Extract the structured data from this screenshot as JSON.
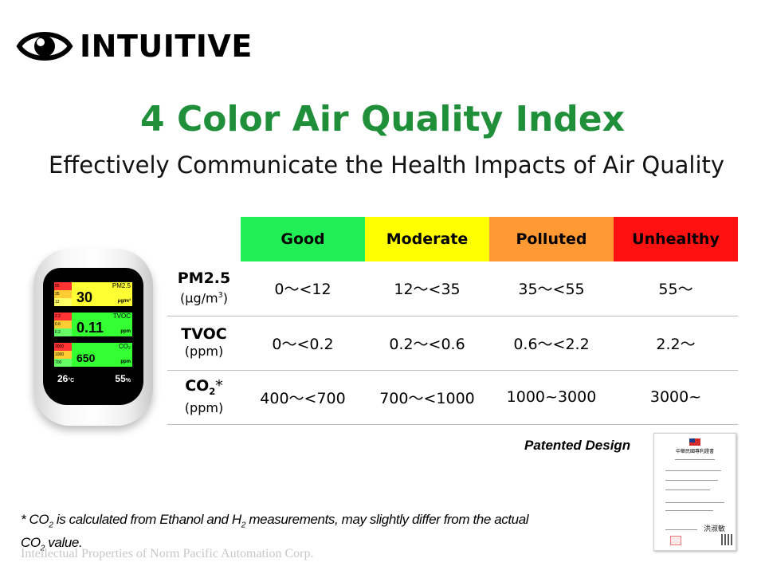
{
  "brand": {
    "name": "INTUITIVE",
    "icon": "eye-icon"
  },
  "title": "4 Color Air Quality Index",
  "subtitle": "Effectively Communicate the Health Impacts of Air Quality",
  "table": {
    "levels": [
      {
        "label": "Good",
        "color": "#22ee55",
        "text_color": "#000000"
      },
      {
        "label": "Moderate",
        "color": "#ffff00",
        "text_color": "#000000"
      },
      {
        "label": "Polluted",
        "color": "#ff9933",
        "text_color": "#000000"
      },
      {
        "label": "Unhealthy",
        "color": "#ff1111",
        "text_color": "#000000"
      }
    ],
    "rows": [
      {
        "name": "PM2.5",
        "unit_pre": "(µg/m",
        "unit_sup": "3",
        "unit_post": ")",
        "values": [
          "0～<12",
          "12～<35",
          "35～<55",
          "55～"
        ]
      },
      {
        "name": "TVOC",
        "unit": "(ppm)",
        "values": [
          "0～<0.2",
          "0.2～<0.6",
          "0.6～<2.2",
          "2.2～"
        ]
      },
      {
        "name_pre": "CO",
        "name_sub": "2",
        "name_post": "*",
        "unit": "(ppm)",
        "values": [
          "400～<700",
          "700～<1000",
          "1000~3000",
          "3000~"
        ]
      }
    ]
  },
  "device": {
    "pm25": {
      "label": "PM2.5",
      "value": "30",
      "unit": "μg/m³",
      "scale": [
        "55",
        "35",
        "12"
      ],
      "color": "#ffff33"
    },
    "tvoc": {
      "label": "TVOC",
      "value": "0.11",
      "unit": "ppm",
      "scale": [
        "2.2",
        "0.6",
        "0.2"
      ],
      "color": "#33ff33"
    },
    "co2": {
      "label": "CO₂",
      "value": "650",
      "unit": "ppm",
      "scale": [
        "3000",
        "1000",
        "700"
      ],
      "color": "#33ff33"
    },
    "temperature": "26",
    "temperature_unit": "°C",
    "humidity": "55",
    "humidity_unit": "%"
  },
  "patented": "Patented Design",
  "certificate": {
    "title": "中華民國專利證書",
    "signature": "洪淑敏"
  },
  "footnote": {
    "pre": "* CO",
    "sub1": "2",
    "mid": " is calculated from Ethanol and H",
    "sub2": "2",
    "post": " measurements, may slightly differ from the actual",
    "line2_pre": "CO",
    "line2_sub": "2",
    "line2_post": " value."
  },
  "copyright": "Intellectual  Properties of Norm Pacific Automation Corp."
}
